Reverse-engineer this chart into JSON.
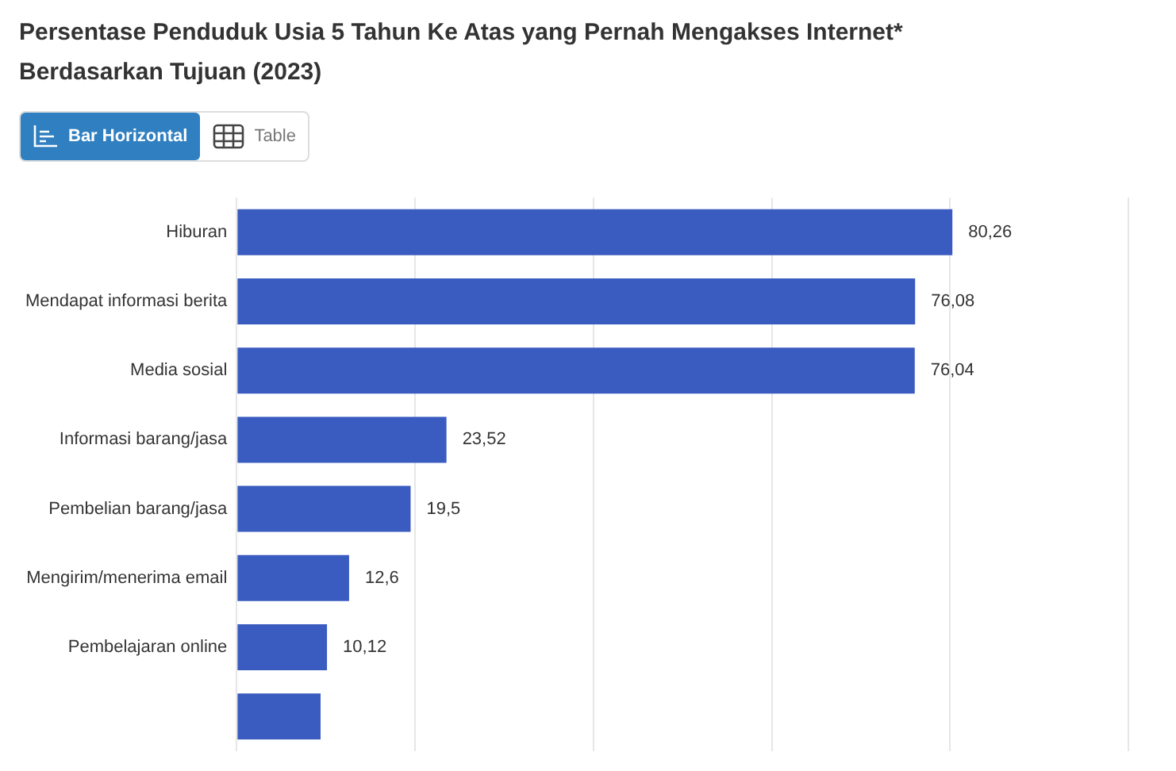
{
  "chart_data": {
    "type": "bar",
    "orientation": "horizontal",
    "title": "Persentase Penduduk Usia 5 Tahun Ke Atas yang Pernah Mengakses Internet* Berdasarkan Tujuan (2023)",
    "annotations": [
      "Bar Horizontal",
      "Table"
    ],
    "categories": [
      "Hiburan",
      "Mendapat informasi berita",
      "Media sosial",
      "Informasi barang/jasa",
      "Pembelian barang/jasa",
      "Mengirim/menerima email",
      "Pembelajaran online",
      null
    ],
    "values": [
      80.26,
      76.08,
      76.04,
      23.52,
      19.5,
      12.6,
      10.12,
      9.4
    ],
    "value_labels": [
      "80,26",
      "76,08",
      "76,04",
      "23,52",
      "19,5",
      "12,6",
      "10,12",
      null
    ],
    "color": "#3a5bbf",
    "xlim": [
      0,
      100
    ],
    "xticks": [
      {
        "value": 0,
        "label": null
      },
      {
        "value": 20,
        "label": null
      },
      {
        "value": 40,
        "label": null
      },
      {
        "value": 60,
        "label": null
      },
      {
        "value": 80,
        "label": null
      },
      {
        "value": 100,
        "label": null
      }
    ],
    "tick_labels": "y",
    "grid": "x",
    "legend": false
  }
}
